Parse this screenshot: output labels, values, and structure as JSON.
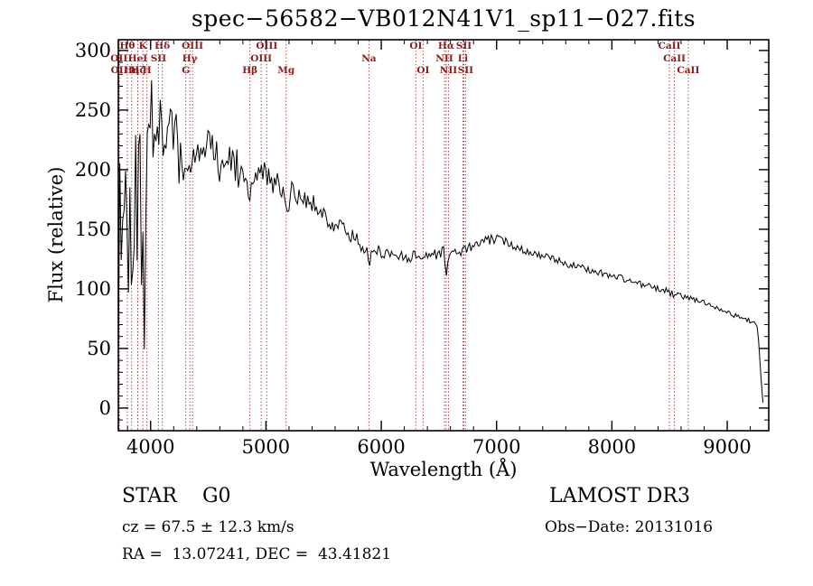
{
  "chart_data": {
    "type": "line",
    "title": "spec−56582−VB012N41V1_sp11−027.fits",
    "xlabel": "Wavelength (Å)",
    "ylabel": "Flux (relative)",
    "xlim": [
      3720,
      9360
    ],
    "ylim": [
      -19,
      309
    ],
    "x_ticks": [
      4000,
      5000,
      6000,
      7000,
      8000,
      9000
    ],
    "y_ticks": [
      0,
      50,
      100,
      150,
      200,
      250,
      300
    ],
    "x_minor_step": 200,
    "y_minor_step": 10,
    "line_color": "#000000",
    "spectral_line_color": "#a03232",
    "spectral_label_color": "#8b1a1a",
    "noise_seed": 1337,
    "spectrum_envelope": [
      [
        3720,
        120,
        115
      ],
      [
        3755,
        150,
        130
      ],
      [
        3800,
        165,
        120
      ],
      [
        3850,
        178,
        105
      ],
      [
        3900,
        188,
        95
      ],
      [
        3935,
        160,
        110
      ],
      [
        3970,
        220,
        75
      ],
      [
        4005,
        244,
        42
      ],
      [
        4050,
        250,
        34
      ],
      [
        4100,
        238,
        36
      ],
      [
        4150,
        234,
        30
      ],
      [
        4200,
        226,
        26
      ],
      [
        4250,
        220,
        23
      ],
      [
        4305,
        198,
        25
      ],
      [
        4340,
        202,
        24
      ],
      [
        4400,
        217,
        18
      ],
      [
        4470,
        222,
        15
      ],
      [
        4550,
        220,
        14
      ],
      [
        4650,
        212,
        14
      ],
      [
        4750,
        206,
        13
      ],
      [
        4820,
        202,
        13
      ],
      [
        4861,
        181,
        12
      ],
      [
        4910,
        198,
        12
      ],
      [
        5000,
        194,
        12
      ],
      [
        5090,
        189,
        11
      ],
      [
        5175,
        171,
        12
      ],
      [
        5250,
        183,
        11
      ],
      [
        5350,
        177,
        10
      ],
      [
        5450,
        168,
        10
      ],
      [
        5550,
        159,
        9
      ],
      [
        5650,
        151,
        8
      ],
      [
        5750,
        144,
        8
      ],
      [
        5850,
        137,
        7
      ],
      [
        5893,
        123,
        6
      ],
      [
        5950,
        132,
        6
      ],
      [
        6050,
        130,
        5
      ],
      [
        6150,
        128,
        5
      ],
      [
        6250,
        127,
        5
      ],
      [
        6350,
        128,
        5
      ],
      [
        6450,
        129,
        5
      ],
      [
        6540,
        131,
        5
      ],
      [
        6563,
        114,
        5
      ],
      [
        6590,
        129,
        4
      ],
      [
        6700,
        132,
        4
      ],
      [
        6800,
        136,
        4
      ],
      [
        6900,
        140,
        4
      ],
      [
        6980,
        142,
        4
      ],
      [
        7060,
        140,
        4
      ],
      [
        7150,
        137,
        4
      ],
      [
        7250,
        132,
        3
      ],
      [
        7350,
        129,
        3
      ],
      [
        7450,
        126,
        3
      ],
      [
        7550,
        123,
        3
      ],
      [
        7650,
        120,
        3
      ],
      [
        7750,
        117,
        3
      ],
      [
        7850,
        115,
        3
      ],
      [
        7950,
        112,
        3
      ],
      [
        8050,
        110,
        3
      ],
      [
        8150,
        107,
        3
      ],
      [
        8250,
        104,
        3
      ],
      [
        8350,
        101,
        3
      ],
      [
        8450,
        99,
        3
      ],
      [
        8542,
        95,
        3
      ],
      [
        8650,
        93,
        2
      ],
      [
        8750,
        90,
        2
      ],
      [
        8850,
        87,
        2
      ],
      [
        8950,
        83,
        2
      ],
      [
        9050,
        78,
        2
      ],
      [
        9150,
        75,
        2
      ],
      [
        9230,
        72,
        2
      ],
      [
        9275,
        60,
        6
      ],
      [
        9290,
        25,
        8
      ],
      [
        9305,
        8,
        3
      ],
      [
        9320,
        4,
        2
      ]
    ],
    "spectral_lines": [
      {
        "wavelength": 3726,
        "label": "OII",
        "row": 2
      },
      {
        "wavelength": 3729,
        "label": "OII",
        "row": 3
      },
      {
        "wavelength": 3798,
        "label": "Hθ",
        "row": 1
      },
      {
        "wavelength": 3835,
        "label": "Hη",
        "row": 3
      },
      {
        "wavelength": 3888,
        "label": "HeI",
        "row": 2
      },
      {
        "wavelength": 3889,
        "label": "Hζ",
        "row": 3
      },
      {
        "wavelength": 3933,
        "label": "K",
        "row": 1
      },
      {
        "wavelength": 3968,
        "label": "H",
        "row": 3
      },
      {
        "wavelength": 4068,
        "label": "SII",
        "row": 2
      },
      {
        "wavelength": 4101,
        "label": "Hδ",
        "row": 1
      },
      {
        "wavelength": 4305,
        "label": "G",
        "row": 3
      },
      {
        "wavelength": 4340,
        "label": "Hγ",
        "row": 2
      },
      {
        "wavelength": 4363,
        "label": "OIII",
        "row": 1
      },
      {
        "wavelength": 4861,
        "label": "Hβ",
        "row": 3
      },
      {
        "wavelength": 4959,
        "label": "OIII",
        "row": 2
      },
      {
        "wavelength": 5007,
        "label": "OIII",
        "row": 1
      },
      {
        "wavelength": 5175,
        "label": "Mg",
        "row": 3
      },
      {
        "wavelength": 5893,
        "label": "Na",
        "row": 2
      },
      {
        "wavelength": 6300,
        "label": "OI",
        "row": 1
      },
      {
        "wavelength": 6363,
        "label": "OI",
        "row": 3
      },
      {
        "wavelength": 6548,
        "label": "NII",
        "row": 2
      },
      {
        "wavelength": 6563,
        "label": "Hα",
        "row": 1
      },
      {
        "wavelength": 6583,
        "label": "NII",
        "row": 3
      },
      {
        "wavelength": 6708,
        "label": "Li",
        "row": 2
      },
      {
        "wavelength": 6716,
        "label": "SII",
        "row": 1
      },
      {
        "wavelength": 6731,
        "label": "SII",
        "row": 3
      },
      {
        "wavelength": 8498,
        "label": "CaII",
        "row": 1
      },
      {
        "wavelength": 8542,
        "label": "CaII",
        "row": 2
      },
      {
        "wavelength": 8662,
        "label": "CaII",
        "row": 3
      }
    ]
  },
  "annotations": {
    "classification": "STAR    G0",
    "survey": "LAMOST DR3",
    "cz": "cz = 67.5 ± 12.3 km/s",
    "obs_date": "Obs−Date: 20131016",
    "ra_dec": "RA =  13.07241, DEC =  43.41821"
  }
}
